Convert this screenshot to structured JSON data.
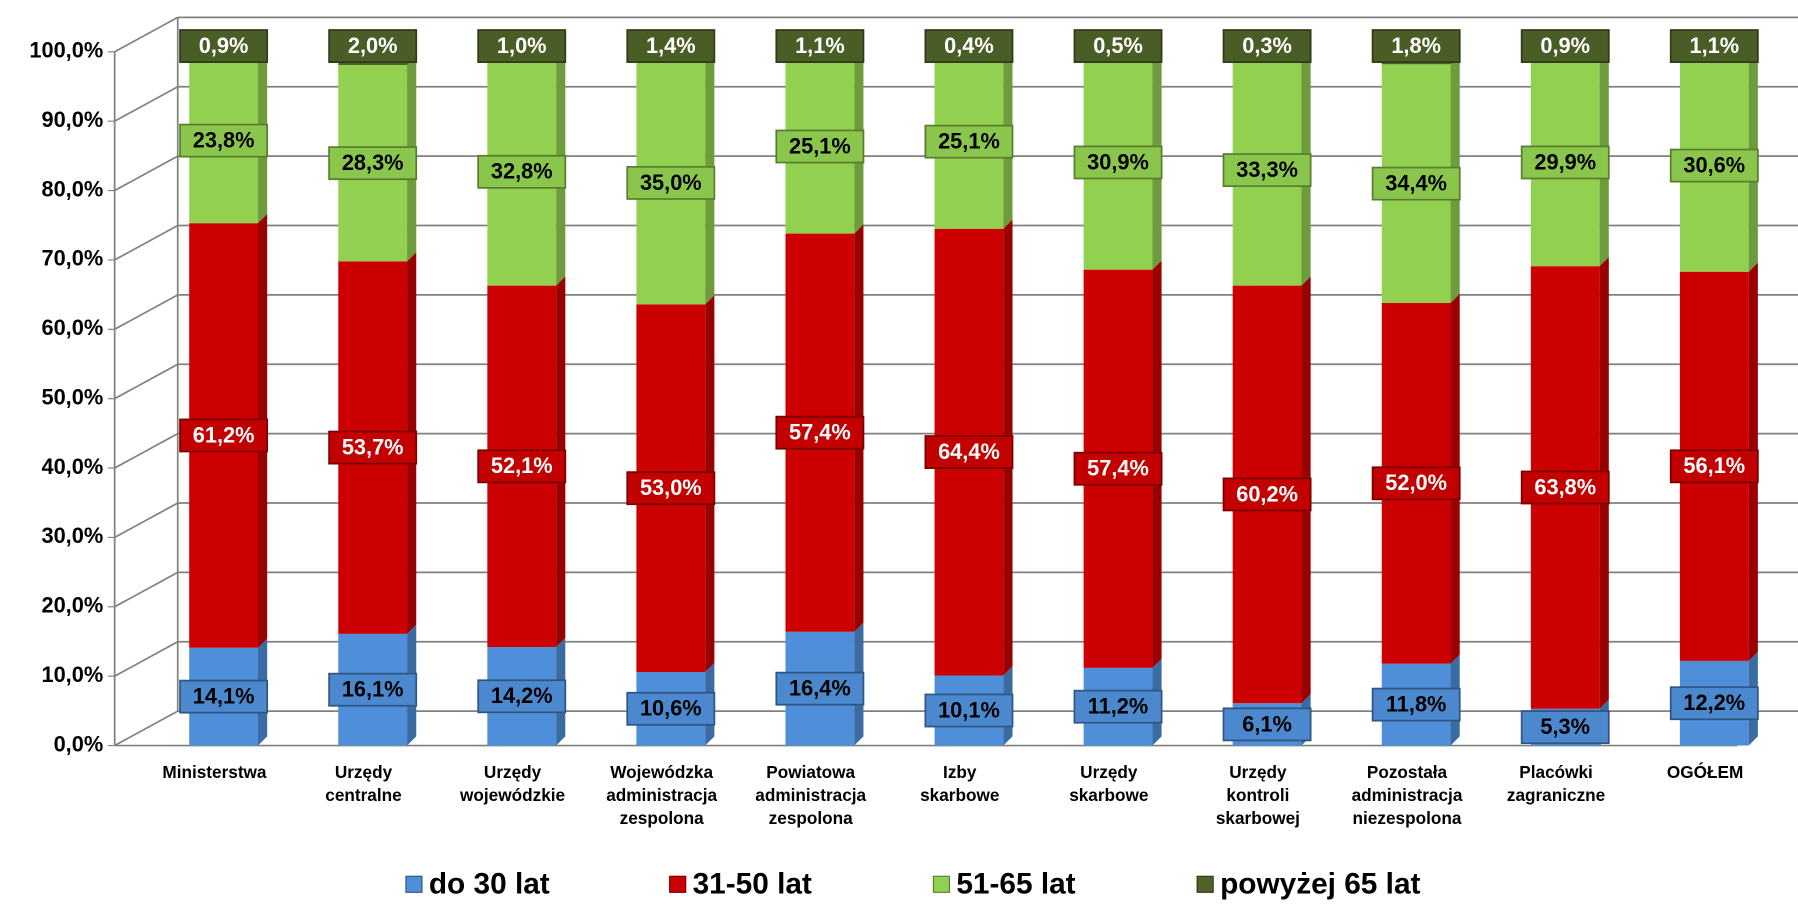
{
  "chart_data": {
    "type": "stacked_bar",
    "categories": [
      [
        "Ministerstwa"
      ],
      [
        "Urzędy",
        "centralne"
      ],
      [
        "Urzędy",
        "wojewódzkie"
      ],
      [
        "Wojewódzka",
        "administracja",
        "zespolona"
      ],
      [
        "Powiatowa",
        "administracja",
        "zespolona"
      ],
      [
        "Izby",
        "skarbowe"
      ],
      [
        "Urzędy",
        "skarbowe"
      ],
      [
        "Urzędy",
        "kontroli",
        "skarbowej"
      ],
      [
        "Pozostała",
        "administracja",
        "niezespolona"
      ],
      [
        "Placówki",
        "zagraniczne"
      ],
      [
        "OGÓŁEM"
      ]
    ],
    "series": [
      {
        "name": "do 30 lat",
        "color": "#4f8fd9",
        "values": [
          14.1,
          16.1,
          14.2,
          10.6,
          16.4,
          10.1,
          11.2,
          6.1,
          11.8,
          5.3,
          12.2
        ],
        "value_labels": [
          "14,1%",
          "16,1%",
          "14,2%",
          "10,6%",
          "16,4%",
          "10,1%",
          "11,2%",
          "6,1%",
          "11,8%",
          "5,3%",
          "12,2%"
        ]
      },
      {
        "name": "31-50 lat",
        "color": "#cc0000",
        "values": [
          61.2,
          53.7,
          52.1,
          53.0,
          57.4,
          64.4,
          57.4,
          60.2,
          52.0,
          63.8,
          56.1
        ],
        "value_labels": [
          "61,2%",
          "53,7%",
          "52,1%",
          "53,0%",
          "57,4%",
          "64,4%",
          "57,4%",
          "60,2%",
          "52,0%",
          "63,8%",
          "56,1%"
        ]
      },
      {
        "name": "51-65 lat",
        "color": "#92d050",
        "values": [
          23.8,
          28.3,
          32.8,
          35.0,
          25.1,
          25.1,
          30.9,
          33.3,
          34.4,
          29.9,
          30.6
        ],
        "value_labels": [
          "23,8%",
          "28,3%",
          "32,8%",
          "35,0%",
          "25,1%",
          "25,1%",
          "30,9%",
          "33,3%",
          "34,4%",
          "29,9%",
          "30,6%"
        ]
      },
      {
        "name": "powyżej 65 lat",
        "color": "#4f6228",
        "values": [
          0.9,
          2.0,
          1.0,
          1.4,
          1.1,
          0.4,
          0.5,
          0.3,
          1.8,
          0.9,
          1.1
        ],
        "value_labels": [
          "0,9%",
          "2,0%",
          "1,0%",
          "1,4%",
          "1,1%",
          "0,4%",
          "0,5%",
          "0,3%",
          "1,8%",
          "0,9%",
          "1,1%"
        ]
      }
    ],
    "ylim": [
      0,
      100
    ],
    "yticks": [
      {
        "value": 0,
        "label": "0,0%"
      },
      {
        "value": 10,
        "label": "10,0%"
      },
      {
        "value": 20,
        "label": "20,0%"
      },
      {
        "value": 30,
        "label": "30,0%"
      },
      {
        "value": 40,
        "label": "40,0%"
      },
      {
        "value": 50,
        "label": "50,0%"
      },
      {
        "value": 60,
        "label": "60,0%"
      },
      {
        "value": 70,
        "label": "70,0%"
      },
      {
        "value": 80,
        "label": "80,0%"
      },
      {
        "value": 90,
        "label": "90,0%"
      },
      {
        "value": 100,
        "label": "100,0%"
      }
    ],
    "grid": true,
    "legend": "bottom"
  }
}
